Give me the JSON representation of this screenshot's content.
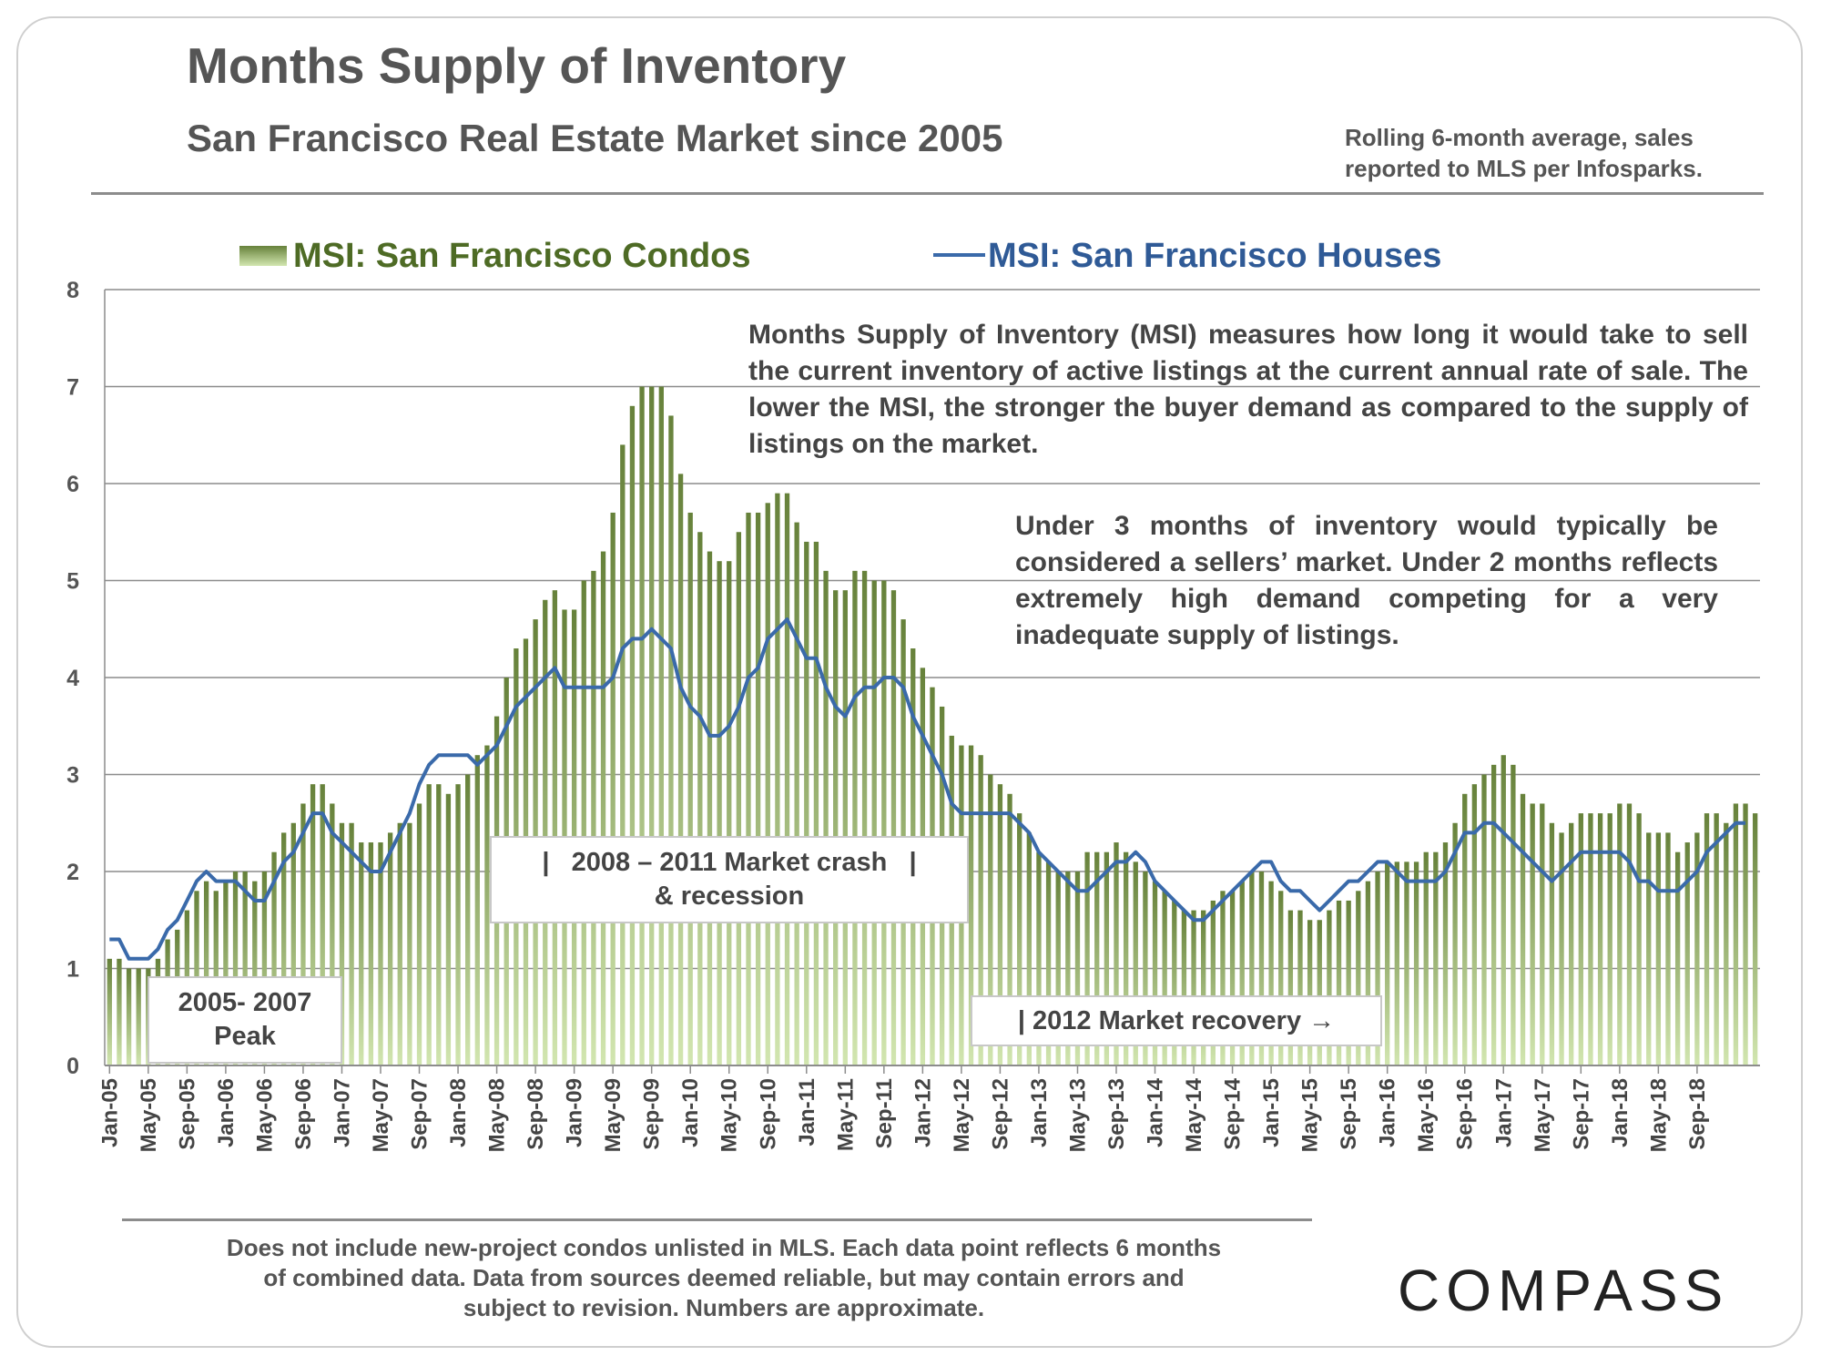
{
  "title": "Months Supply of Inventory",
  "subtitle": "San Francisco Real Estate Market since 2005",
  "source_note": "Rolling 6-month average, sales reported to MLS per Infosparks.",
  "colors": {
    "condos": "#4e6b25",
    "houses": "#3a6aaa",
    "condo_bar_top": "#66813a",
    "condo_bar_bottom": "#d2e6b0",
    "text": "#555555",
    "grid": "#8c8c8c"
  },
  "annotations": {
    "msi_definition": "Months Supply of Inventory (MSI) measures how long it would take to sell the current inventory of active listings at the current annual rate of sale. The lower the MSI, the stronger the buyer demand as compared to the supply of listings on the market.",
    "sellers_market": "Under 3 months of inventory would typically be considered a sellers’ market. Under 2 months reflects extremely high demand competing for a very inadequate supply of listings.",
    "peak": "2005- 2007 Peak",
    "crash": "|   2008 – 2011 Market crash   |  & recession",
    "recovery": "| 2012 Market recovery →"
  },
  "footer_note": "Does not include new-project condos unlisted in MLS. Each data point reflects 6 months of combined data. Data from sources deemed reliable, but may contain errors and subject to revision. Numbers are approximate.",
  "logo": "COMPASS",
  "chart_data": {
    "type": "bar+line",
    "ylim": [
      0,
      8
    ],
    "yticks": [
      0,
      1,
      2,
      3,
      4,
      5,
      6,
      7,
      8
    ],
    "grid": true,
    "legend_position": "top",
    "x_tick_labels": [
      "Jan-05",
      "May-05",
      "Sep-05",
      "Jan-06",
      "May-06",
      "Sep-06",
      "Jan-07",
      "May-07",
      "Sep-07",
      "Jan-08",
      "May-08",
      "Sep-08",
      "Jan-09",
      "May-09",
      "Sep-09",
      "Jan-10",
      "May-10",
      "Sep-10",
      "Jan-11",
      "May-11",
      "Sep-11",
      "Jan-12",
      "May-12",
      "Sep-12",
      "Jan-13",
      "May-13",
      "Sep-13",
      "Jan-14",
      "May-14",
      "Sep-14",
      "Jan-15",
      "May-15",
      "Sep-15",
      "Jan-16",
      "May-16",
      "Sep-16",
      "Jan-17",
      "May-17",
      "Sep-17",
      "Jan-18",
      "May-18",
      "Sep-18"
    ],
    "x_start": "Jan-05",
    "x_interval": "monthly",
    "series": [
      {
        "name": "MSI: San Francisco Condos",
        "type": "bar",
        "values": [
          1.1,
          1.1,
          1.0,
          1.0,
          1.0,
          1.1,
          1.3,
          1.4,
          1.6,
          1.8,
          1.9,
          1.8,
          1.9,
          2.0,
          2.0,
          1.9,
          2.0,
          2.2,
          2.4,
          2.5,
          2.7,
          2.9,
          2.9,
          2.7,
          2.5,
          2.5,
          2.3,
          2.3,
          2.3,
          2.4,
          2.5,
          2.5,
          2.7,
          2.9,
          2.9,
          2.8,
          2.9,
          3.0,
          3.2,
          3.3,
          3.6,
          4.0,
          4.3,
          4.4,
          4.6,
          4.8,
          4.9,
          4.7,
          4.7,
          5.0,
          5.1,
          5.3,
          5.7,
          6.4,
          6.8,
          7.0,
          7.0,
          7.0,
          6.7,
          6.1,
          5.7,
          5.5,
          5.3,
          5.2,
          5.2,
          5.5,
          5.7,
          5.7,
          5.8,
          5.9,
          5.9,
          5.6,
          5.4,
          5.4,
          5.1,
          4.9,
          4.9,
          5.1,
          5.1,
          5.0,
          5.0,
          4.9,
          4.6,
          4.3,
          4.1,
          3.9,
          3.7,
          3.4,
          3.3,
          3.3,
          3.2,
          3.0,
          2.9,
          2.8,
          2.6,
          2.4,
          2.2,
          2.1,
          2.0,
          2.0,
          2.0,
          2.2,
          2.2,
          2.2,
          2.3,
          2.2,
          2.1,
          2.0,
          1.9,
          1.8,
          1.7,
          1.6,
          1.6,
          1.6,
          1.7,
          1.8,
          1.8,
          1.9,
          2.0,
          2.0,
          1.9,
          1.8,
          1.6,
          1.6,
          1.5,
          1.5,
          1.6,
          1.7,
          1.7,
          1.8,
          1.9,
          2.0,
          2.1,
          2.1,
          2.1,
          2.1,
          2.2,
          2.2,
          2.3,
          2.5,
          2.8,
          2.9,
          3.0,
          3.1,
          3.2,
          3.1,
          2.8,
          2.7,
          2.7,
          2.5,
          2.4,
          2.5,
          2.6,
          2.6,
          2.6,
          2.6,
          2.7,
          2.7,
          2.6,
          2.4,
          2.4,
          2.4,
          2.2,
          2.3,
          2.4,
          2.6,
          2.6,
          2.5,
          2.7,
          2.7,
          2.6
        ]
      },
      {
        "name": "MSI: San Francisco Houses",
        "type": "line",
        "values": [
          1.3,
          1.3,
          1.1,
          1.1,
          1.1,
          1.2,
          1.4,
          1.5,
          1.7,
          1.9,
          2.0,
          1.9,
          1.9,
          1.9,
          1.8,
          1.7,
          1.7,
          1.9,
          2.1,
          2.2,
          2.4,
          2.6,
          2.6,
          2.4,
          2.3,
          2.2,
          2.1,
          2.0,
          2.0,
          2.2,
          2.4,
          2.6,
          2.9,
          3.1,
          3.2,
          3.2,
          3.2,
          3.2,
          3.1,
          3.2,
          3.3,
          3.5,
          3.7,
          3.8,
          3.9,
          4.0,
          4.1,
          3.9,
          3.9,
          3.9,
          3.9,
          3.9,
          4.0,
          4.3,
          4.4,
          4.4,
          4.5,
          4.4,
          4.3,
          3.9,
          3.7,
          3.6,
          3.4,
          3.4,
          3.5,
          3.7,
          4.0,
          4.1,
          4.4,
          4.5,
          4.6,
          4.4,
          4.2,
          4.2,
          3.9,
          3.7,
          3.6,
          3.8,
          3.9,
          3.9,
          4.0,
          4.0,
          3.9,
          3.6,
          3.4,
          3.2,
          3.0,
          2.7,
          2.6,
          2.6,
          2.6,
          2.6,
          2.6,
          2.6,
          2.5,
          2.4,
          2.2,
          2.1,
          2.0,
          1.9,
          1.8,
          1.8,
          1.9,
          2.0,
          2.1,
          2.1,
          2.2,
          2.1,
          1.9,
          1.8,
          1.7,
          1.6,
          1.5,
          1.5,
          1.6,
          1.7,
          1.8,
          1.9,
          2.0,
          2.1,
          2.1,
          1.9,
          1.8,
          1.8,
          1.7,
          1.6,
          1.7,
          1.8,
          1.9,
          1.9,
          2.0,
          2.1,
          2.1,
          2.0,
          1.9,
          1.9,
          1.9,
          1.9,
          2.0,
          2.2,
          2.4,
          2.4,
          2.5,
          2.5,
          2.4,
          2.3,
          2.2,
          2.1,
          2.0,
          1.9,
          2.0,
          2.1,
          2.2,
          2.2,
          2.2,
          2.2,
          2.2,
          2.1,
          1.9,
          1.9,
          1.8,
          1.8,
          1.8,
          1.9,
          2.0,
          2.2,
          2.3,
          2.4,
          2.5,
          2.5
        ]
      }
    ]
  }
}
